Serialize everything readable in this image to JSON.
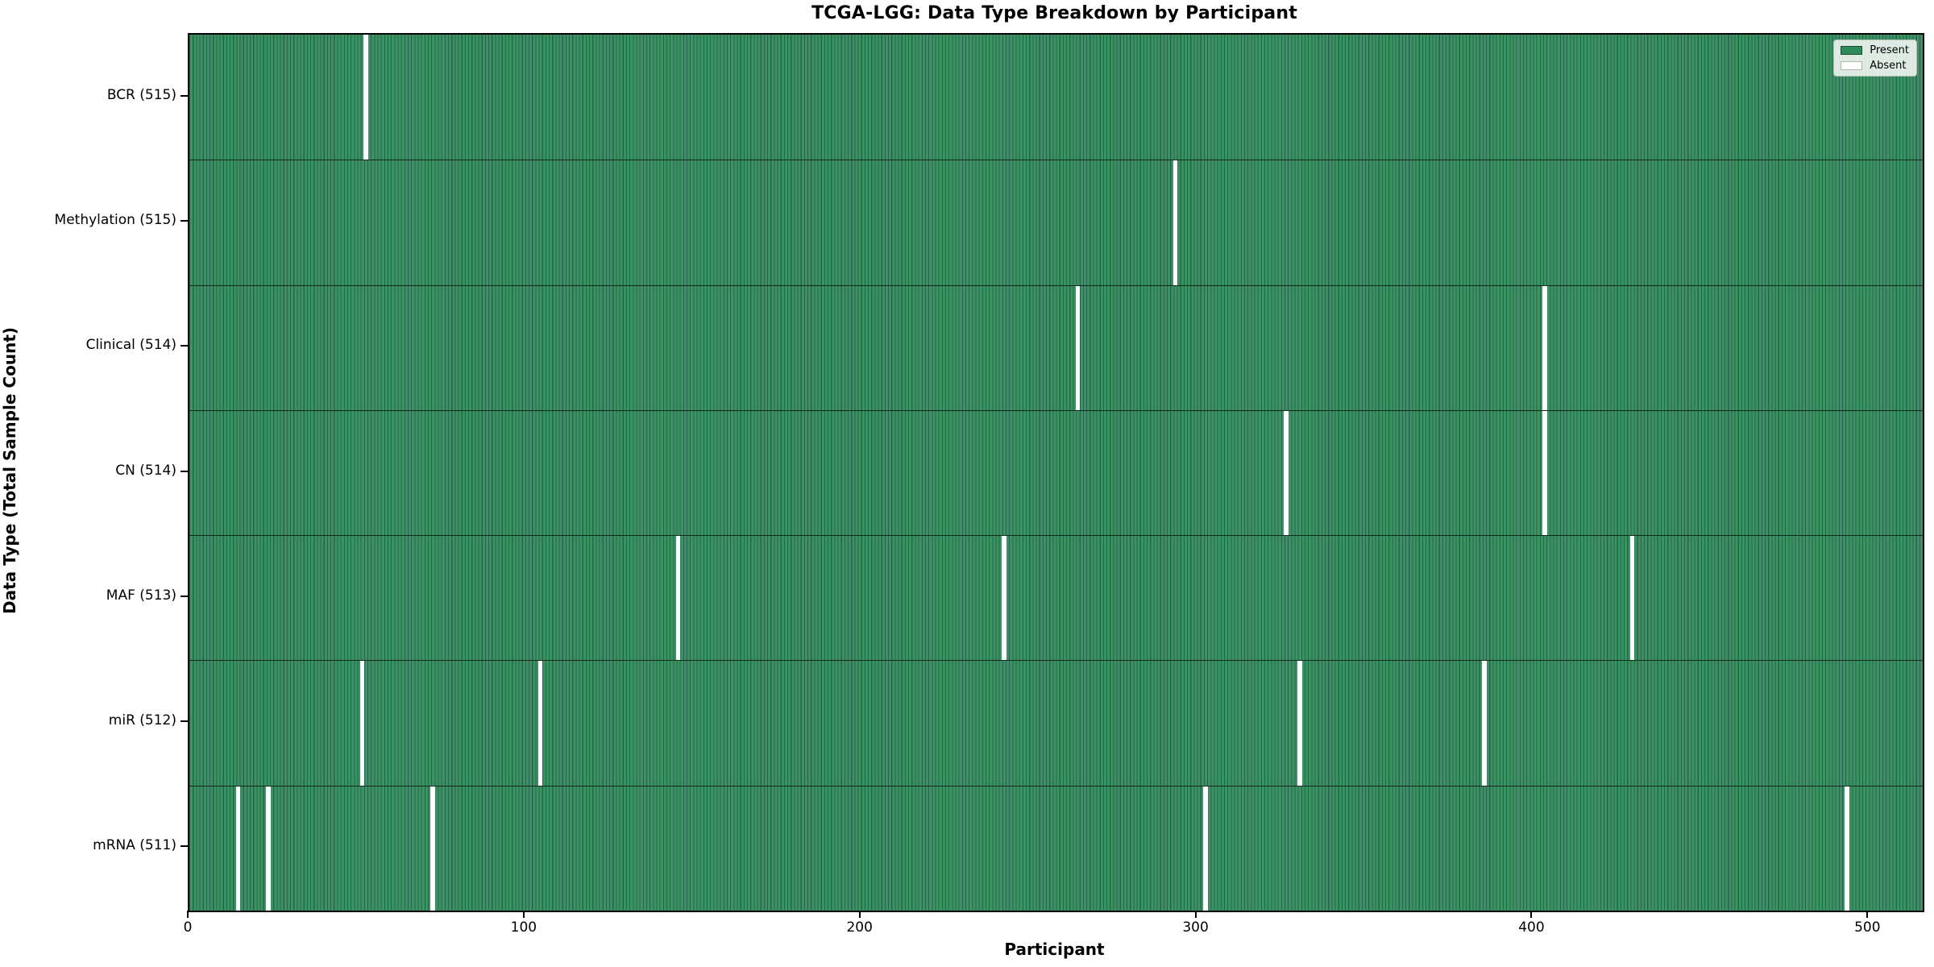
{
  "chart_data": {
    "type": "heatmap",
    "title": "TCGA-LGG: Data Type Breakdown by Participant",
    "xlabel": "Participant",
    "ylabel": "Data Type (Total Sample Count)",
    "x_ticks": [
      0,
      100,
      200,
      300,
      400,
      500
    ],
    "x_range": [
      0,
      516
    ],
    "total_participants": 516,
    "grid": false,
    "legend_position": "upper right",
    "legend": [
      {
        "label": "Present",
        "color": "#2E8B57"
      },
      {
        "label": "Absent",
        "color": "#FFFFFF"
      }
    ],
    "rows": [
      {
        "label": "BCR (515)",
        "data_type": "BCR",
        "present_count": 515,
        "absent_participants": [
          52
        ]
      },
      {
        "label": "Methylation (515)",
        "data_type": "Methylation",
        "present_count": 515,
        "absent_participants": [
          293
        ]
      },
      {
        "label": "Clinical (514)",
        "data_type": "Clinical",
        "present_count": 514,
        "absent_participants": [
          264,
          403
        ]
      },
      {
        "label": "CN (514)",
        "data_type": "CN",
        "present_count": 514,
        "absent_participants": [
          326,
          403
        ]
      },
      {
        "label": "MAF (513)",
        "data_type": "MAF",
        "present_count": 513,
        "absent_participants": [
          145,
          242,
          429
        ]
      },
      {
        "label": "miR (512)",
        "data_type": "miR",
        "present_count": 512,
        "absent_participants": [
          51,
          104,
          330,
          385
        ]
      },
      {
        "label": "mRNA (511)",
        "data_type": "mRNA",
        "present_count": 511,
        "absent_participants": [
          14,
          23,
          72,
          302,
          493
        ]
      }
    ],
    "colors": {
      "present_fill": "#3B9364",
      "bar_edge": "#28644B",
      "absent": "#FFFFFF",
      "row_separator": "#10291B",
      "axis": "#000000",
      "legend_swatch_present": "#2E8B57",
      "legend_swatch_present_border": "#1B4F33",
      "legend_swatch_absent": "#FFFFFF",
      "legend_swatch_absent_border": "#B0B4AC"
    }
  }
}
